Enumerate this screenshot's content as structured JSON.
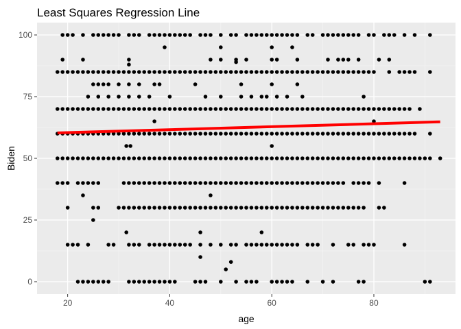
{
  "chart_data": {
    "type": "scatter",
    "title": "Least Squares Regression Line",
    "xlabel": "age",
    "ylabel": "Biden",
    "xlim": [
      14,
      96
    ],
    "ylim": [
      -5,
      105
    ],
    "x_ticks": [
      20,
      40,
      60,
      80
    ],
    "y_ticks": [
      0,
      25,
      50,
      75,
      100
    ],
    "x_tick_labels": [
      "20",
      "40",
      "60",
      "80"
    ],
    "y_tick_labels": [
      "0",
      "25",
      "50",
      "75",
      "100"
    ],
    "grid": true,
    "colors": {
      "panel_background": "#ebebeb",
      "grid_major": "#ffffff",
      "point": "#000000",
      "regression_line": "#ff0000"
    },
    "regression_line": {
      "x": [
        18,
        93
      ],
      "y": [
        60.3,
        64.8
      ]
    },
    "series": [
      {
        "name": "Biden = 0",
        "y": 0,
        "x": [
          22,
          23,
          24,
          25,
          26,
          27,
          28,
          32,
          33,
          34,
          35,
          36,
          37,
          38,
          39,
          40,
          41,
          45,
          46,
          47,
          50,
          53,
          55,
          56,
          57,
          60,
          61,
          62,
          63,
          64,
          67,
          70,
          72,
          77,
          78,
          90,
          91
        ]
      },
      {
        "name": "Biden = 5",
        "y": 5,
        "x": [
          51
        ]
      },
      {
        "name": "Biden = 8",
        "y": 8,
        "x": [
          52
        ]
      },
      {
        "name": "Biden = 10",
        "y": 10,
        "x": [
          46
        ]
      },
      {
        "name": "Biden = 15",
        "y": 15,
        "x": [
          20,
          21,
          22,
          24,
          28,
          29,
          32,
          33,
          34,
          36,
          37,
          38,
          39,
          40,
          41,
          42,
          43,
          44,
          46,
          48,
          50,
          52,
          53,
          55,
          56,
          57,
          58,
          59,
          60,
          61,
          62,
          63,
          64,
          65,
          67,
          68,
          69,
          72,
          75,
          76,
          78,
          79,
          80,
          86
        ]
      },
      {
        "name": "Biden = 20",
        "y": 20,
        "x": [
          31.5,
          46,
          58
        ]
      },
      {
        "name": "Biden = 25",
        "y": 25,
        "x": [
          25
        ]
      },
      {
        "name": "Biden = 30",
        "y": 30,
        "x": [
          20,
          25,
          26,
          30,
          31,
          32,
          33,
          34,
          35,
          36,
          37,
          38,
          39,
          40,
          41,
          42,
          43,
          44,
          45,
          46,
          47,
          48,
          49,
          50,
          51,
          52,
          53,
          54,
          55,
          56,
          57,
          58,
          59,
          60,
          61,
          62,
          63,
          64,
          65,
          66,
          67,
          68,
          69,
          70,
          71,
          72,
          73,
          74,
          75,
          76,
          77,
          78,
          81,
          82
        ]
      },
      {
        "name": "Biden = 35",
        "y": 35,
        "x": [
          23,
          48
        ]
      },
      {
        "name": "Biden = 40",
        "y": 40,
        "x": [
          18,
          19,
          20,
          22,
          23,
          24,
          25,
          26,
          31,
          32,
          33,
          34,
          35,
          36,
          37,
          38,
          39,
          40,
          41,
          42,
          43,
          44,
          45,
          46,
          47,
          48,
          49,
          50,
          51,
          52,
          53,
          54,
          55,
          56,
          57,
          58,
          59,
          60,
          61,
          62,
          63,
          64,
          65,
          66,
          67,
          68,
          69,
          70,
          71,
          72,
          73,
          74,
          76,
          77,
          78,
          79,
          81,
          86
        ]
      },
      {
        "name": "Biden = 50",
        "y": 50,
        "x": [
          18,
          19,
          20,
          21,
          22,
          23,
          24,
          25,
          26,
          27,
          28,
          29,
          30,
          31,
          32,
          33,
          34,
          35,
          36,
          37,
          38,
          39,
          40,
          41,
          42,
          43,
          44,
          45,
          46,
          47,
          48,
          49,
          50,
          51,
          52,
          53,
          54,
          55,
          56,
          57,
          58,
          59,
          60,
          61,
          62,
          63,
          64,
          65,
          66,
          67,
          68,
          69,
          70,
          71,
          72,
          73,
          74,
          75,
          76,
          77,
          78,
          79,
          80,
          81,
          82,
          83,
          84,
          85,
          86,
          87,
          88,
          89,
          90,
          91,
          93
        ]
      },
      {
        "name": "Biden = 55",
        "y": 55,
        "x": [
          31.5,
          32.3,
          60
        ]
      },
      {
        "name": "Biden = 60",
        "y": 60,
        "x": [
          18,
          19,
          20,
          21,
          22,
          23,
          24,
          25,
          26,
          27,
          28,
          29,
          30,
          31,
          32,
          33,
          34,
          35,
          36,
          37,
          38,
          39,
          40,
          41,
          42,
          43,
          44,
          45,
          46,
          47,
          48,
          49,
          50,
          51,
          52,
          53,
          54,
          55,
          56,
          57,
          58,
          59,
          60,
          61,
          62,
          63,
          64,
          65,
          66,
          67,
          68,
          69,
          70,
          71,
          72,
          73,
          74,
          75,
          76,
          77,
          78,
          79,
          80,
          81,
          82,
          83,
          84,
          85,
          86,
          87,
          88,
          91
        ]
      },
      {
        "name": "Biden = 65",
        "y": 65,
        "x": [
          37,
          80
        ]
      },
      {
        "name": "Biden = 70",
        "y": 70,
        "x": [
          18,
          19,
          20,
          21,
          22,
          23,
          24,
          25,
          26,
          27,
          28,
          29,
          30,
          31,
          32,
          33,
          34,
          35,
          36,
          37,
          38,
          39,
          40,
          41,
          42,
          43,
          44,
          45,
          46,
          47,
          48,
          49,
          50,
          51,
          52,
          53,
          54,
          55,
          56,
          57,
          58,
          59,
          60,
          61,
          62,
          63,
          64,
          65,
          66,
          67,
          68,
          69,
          70,
          71,
          72,
          73,
          74,
          75,
          76,
          77,
          78,
          79,
          80,
          81,
          82,
          83,
          84,
          85,
          86,
          87,
          89
        ]
      },
      {
        "name": "Biden = 75",
        "y": 75,
        "x": [
          24,
          26,
          28,
          30,
          32,
          34,
          36,
          40,
          47,
          50,
          54,
          56,
          58,
          59,
          61,
          63,
          66,
          78
        ]
      },
      {
        "name": "Biden = 80",
        "y": 80,
        "x": [
          25,
          26,
          27,
          28,
          30,
          32,
          34,
          37,
          38,
          45,
          54,
          60,
          65
        ]
      },
      {
        "name": "Biden = 85",
        "y": 85,
        "x": [
          18,
          19,
          20,
          21,
          22,
          23,
          24,
          25,
          26,
          27,
          28,
          29,
          30,
          31,
          32,
          33,
          34,
          35,
          36,
          37,
          38,
          39,
          40,
          41,
          42,
          43,
          44,
          45,
          46,
          47,
          48,
          49,
          50,
          51,
          52,
          53,
          54,
          55,
          56,
          57,
          58,
          59,
          60,
          61,
          62,
          63,
          64,
          65,
          66,
          67,
          68,
          69,
          70,
          71,
          72,
          73,
          74,
          75,
          76,
          77,
          78,
          79,
          80,
          83,
          85,
          86,
          87,
          88,
          91
        ]
      },
      {
        "name": "Biden = 88",
        "y": 88,
        "x": [
          32
        ]
      },
      {
        "name": "Biden = 89",
        "y": 89,
        "x": [
          53
        ]
      },
      {
        "name": "Biden = 90",
        "y": 90,
        "x": [
          19,
          23,
          32,
          48,
          50,
          53,
          55,
          60,
          61,
          65,
          71,
          73,
          74,
          75,
          77,
          81,
          83
        ]
      },
      {
        "name": "Biden = 95",
        "y": 95,
        "x": [
          39,
          50,
          60,
          64
        ]
      },
      {
        "name": "Biden = 100",
        "y": 100,
        "x": [
          19,
          20,
          21,
          23,
          25,
          26,
          27,
          28,
          29,
          30,
          32,
          33,
          34,
          36,
          37,
          38,
          39,
          40,
          41,
          42,
          43,
          44,
          46,
          47,
          48,
          50,
          52,
          53,
          55,
          56,
          57,
          58,
          59,
          60,
          61,
          62,
          63,
          64,
          65,
          67,
          68,
          70,
          71,
          72,
          73,
          74,
          75,
          76,
          77,
          79,
          80,
          82,
          83,
          84,
          86,
          88,
          91
        ]
      }
    ]
  }
}
